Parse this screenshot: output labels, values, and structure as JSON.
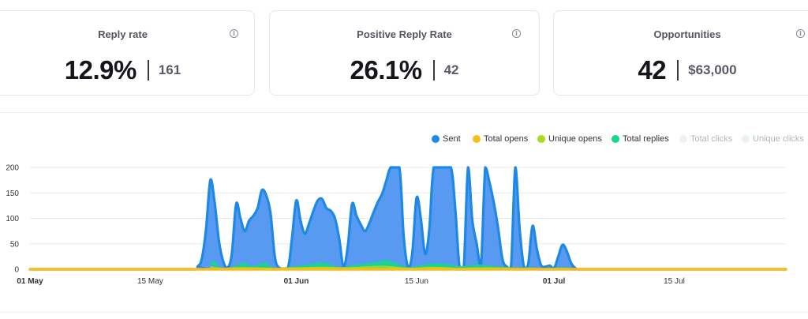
{
  "stats": [
    {
      "label": "Reply rate",
      "value": "12.9%",
      "sub_value": "161",
      "info": "i"
    },
    {
      "label": "Positive Reply Rate",
      "value": "26.1%",
      "sub_value": "42",
      "info": "i"
    },
    {
      "label": "Opportunities",
      "value": "42",
      "sub_value": "$63,000",
      "info": "i"
    }
  ],
  "colors": {
    "sent": "#1e88e5",
    "sent_fill": "#4f95f0",
    "total_opens": "#fbbc18",
    "unique_opens": "#a6e01c",
    "total_replies": "#14d88c",
    "total_clicks": "#eef1f7",
    "unique_clicks": "#e6f5ee",
    "grid": "#e8e8e8"
  },
  "chart_data": {
    "type": "area",
    "legend": [
      {
        "name": "Sent",
        "color": "#1e88e5",
        "enabled": true
      },
      {
        "name": "Total opens",
        "color": "#fbbc18",
        "enabled": true
      },
      {
        "name": "Unique opens",
        "color": "#a6e01c",
        "enabled": true
      },
      {
        "name": "Total replies",
        "color": "#14d88c",
        "enabled": true
      },
      {
        "name": "Total clicks",
        "color": "#eef1f7",
        "enabled": false
      },
      {
        "name": "Unique clicks",
        "color": "#e6f5ee",
        "enabled": false
      }
    ],
    "legend_position": "top-right",
    "grid": true,
    "ylim": [
      0,
      200
    ],
    "yticks": [
      "0",
      "50",
      "100",
      "150",
      "200"
    ],
    "xticks": [
      {
        "label": "01 May",
        "day": 0,
        "bold": true
      },
      {
        "label": "15 May",
        "day": 14,
        "bold": false
      },
      {
        "label": "01 Jun",
        "day": 31,
        "bold": true
      },
      {
        "label": "15 Jun",
        "day": 45,
        "bold": false
      },
      {
        "label": "01 Jul",
        "day": 61,
        "bold": true
      },
      {
        "label": "15 Jul",
        "day": 75,
        "bold": false
      }
    ],
    "series": [
      {
        "name": "Sent",
        "points": [
          [
            0,
            0
          ],
          [
            19,
            0
          ],
          [
            19.5,
            5
          ],
          [
            20,
            20
          ],
          [
            20.5,
            80
          ],
          [
            21,
            175
          ],
          [
            21.5,
            130
          ],
          [
            22,
            55
          ],
          [
            22.5,
            15
          ],
          [
            23,
            3
          ],
          [
            23.5,
            30
          ],
          [
            24,
            128
          ],
          [
            24.5,
            100
          ],
          [
            25,
            75
          ],
          [
            25.5,
            95
          ],
          [
            26,
            105
          ],
          [
            26.5,
            120
          ],
          [
            27,
            155
          ],
          [
            27.5,
            145
          ],
          [
            28,
            110
          ],
          [
            28.5,
            25
          ],
          [
            29,
            3
          ],
          [
            30,
            2
          ],
          [
            30.5,
            60
          ],
          [
            31,
            135
          ],
          [
            31.5,
            95
          ],
          [
            32,
            70
          ],
          [
            32.5,
            90
          ],
          [
            33,
            115
          ],
          [
            33.5,
            135
          ],
          [
            34,
            138
          ],
          [
            34.5,
            120
          ],
          [
            35,
            115
          ],
          [
            35.5,
            100
          ],
          [
            36,
            60
          ],
          [
            36.5,
            5
          ],
          [
            37,
            45
          ],
          [
            37.5,
            128
          ],
          [
            38,
            105
          ],
          [
            38.5,
            88
          ],
          [
            39,
            75
          ],
          [
            39.5,
            90
          ],
          [
            40,
            112
          ],
          [
            40.5,
            132
          ],
          [
            41,
            148
          ],
          [
            41.5,
            175
          ],
          [
            42,
            200
          ],
          [
            43,
            200
          ],
          [
            43.5,
            65
          ],
          [
            44,
            5
          ],
          [
            44.5,
            30
          ],
          [
            45,
            140
          ],
          [
            45.5,
            100
          ],
          [
            46,
            30
          ],
          [
            46.5,
            80
          ],
          [
            47,
            200
          ],
          [
            48,
            200
          ],
          [
            49,
            200
          ],
          [
            49.5,
            120
          ],
          [
            50,
            5
          ],
          [
            50.5,
            5
          ],
          [
            51,
            200
          ],
          [
            51.5,
            95
          ],
          [
            52,
            50
          ],
          [
            52.5,
            5
          ],
          [
            53,
            200
          ],
          [
            53.5,
            170
          ],
          [
            54,
            130
          ],
          [
            54.5,
            80
          ],
          [
            55,
            20
          ],
          [
            55.5,
            5
          ],
          [
            56,
            3
          ],
          [
            56.5,
            200
          ],
          [
            57,
            80
          ],
          [
            57.5,
            5
          ],
          [
            58,
            10
          ],
          [
            58.5,
            85
          ],
          [
            59,
            40
          ],
          [
            59.5,
            8
          ],
          [
            60,
            5
          ],
          [
            60.5,
            7
          ],
          [
            61,
            2
          ],
          [
            61.5,
            25
          ],
          [
            62,
            48
          ],
          [
            62.5,
            35
          ],
          [
            63,
            12
          ],
          [
            63.5,
            2
          ],
          [
            64,
            0
          ],
          [
            88,
            0
          ]
        ]
      },
      {
        "name": "Total replies",
        "points": [
          [
            0,
            0
          ],
          [
            20,
            0
          ],
          [
            21,
            12
          ],
          [
            21.5,
            14
          ],
          [
            22,
            4
          ],
          [
            23,
            2
          ],
          [
            24,
            6
          ],
          [
            25,
            12
          ],
          [
            25.5,
            6
          ],
          [
            26,
            5
          ],
          [
            27,
            10
          ],
          [
            27.5,
            12
          ],
          [
            28,
            4
          ],
          [
            29,
            2
          ],
          [
            31,
            5
          ],
          [
            32,
            7
          ],
          [
            33,
            10
          ],
          [
            34,
            12
          ],
          [
            35,
            8
          ],
          [
            36,
            3
          ],
          [
            37,
            5
          ],
          [
            38,
            8
          ],
          [
            39,
            10
          ],
          [
            40,
            12
          ],
          [
            41,
            15
          ],
          [
            41.5,
            18
          ],
          [
            42,
            14
          ],
          [
            43,
            8
          ],
          [
            44,
            3
          ],
          [
            45,
            5
          ],
          [
            46,
            8
          ],
          [
            47,
            10
          ],
          [
            48,
            10
          ],
          [
            49,
            8
          ],
          [
            50,
            5
          ],
          [
            51,
            6
          ],
          [
            52,
            8
          ],
          [
            53,
            7
          ],
          [
            54,
            5
          ],
          [
            55,
            4
          ],
          [
            56,
            3
          ],
          [
            57,
            2
          ],
          [
            58,
            3
          ],
          [
            59,
            2
          ],
          [
            61,
            2
          ],
          [
            62,
            3
          ],
          [
            63,
            1
          ],
          [
            64,
            0
          ],
          [
            88,
            0
          ]
        ]
      },
      {
        "name": "Unique opens",
        "points": [
          [
            0,
            0
          ],
          [
            20,
            0
          ],
          [
            21,
            5
          ],
          [
            22,
            2
          ],
          [
            24,
            3
          ],
          [
            26,
            3
          ],
          [
            28,
            2
          ],
          [
            31,
            3
          ],
          [
            34,
            4
          ],
          [
            37,
            3
          ],
          [
            41,
            6
          ],
          [
            44,
            2
          ],
          [
            47,
            4
          ],
          [
            50,
            2
          ],
          [
            53,
            3
          ],
          [
            56,
            2
          ],
          [
            59,
            1
          ],
          [
            63,
            0
          ],
          [
            88,
            0
          ]
        ]
      },
      {
        "name": "Total opens",
        "points": [
          [
            0,
            0
          ],
          [
            88,
            0
          ]
        ]
      }
    ]
  }
}
